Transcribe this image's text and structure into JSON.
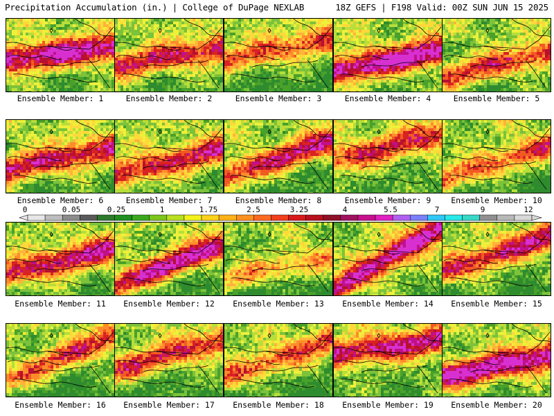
{
  "header": {
    "left_title": "Precipitation Accumulation (in.) | College of DuPage NEXLAB",
    "right_title": "18Z GEFS | F198 Valid: 00Z SUN JUN 15 2025"
  },
  "panels": [
    {
      "label": "Ensemble Member: 1"
    },
    {
      "label": "Ensemble Member: 2"
    },
    {
      "label": "Ensemble Member: 3"
    },
    {
      "label": "Ensemble Member: 4"
    },
    {
      "label": "Ensemble Member: 5"
    },
    {
      "label": "Ensemble Member: 6"
    },
    {
      "label": "Ensemble Member: 7"
    },
    {
      "label": "Ensemble Member: 8"
    },
    {
      "label": "Ensemble Member: 9"
    },
    {
      "label": "Ensemble Member: 10"
    },
    {
      "label": "Ensemble Member: 11"
    },
    {
      "label": "Ensemble Member: 12"
    },
    {
      "label": "Ensemble Member: 13"
    },
    {
      "label": "Ensemble Member: 14"
    },
    {
      "label": "Ensemble Member: 15"
    },
    {
      "label": "Ensemble Member: 16"
    },
    {
      "label": "Ensemble Member: 17"
    },
    {
      "label": "Ensemble Member: 18"
    },
    {
      "label": "Ensemble Member: 19"
    },
    {
      "label": "Ensemble Member: 20"
    }
  ],
  "colorbar": {
    "tick_labels": [
      "0",
      "0.05",
      "0.25",
      "1",
      "1.75",
      "2.5",
      "3.25",
      "4",
      "5.5",
      "7",
      "9",
      "12"
    ],
    "colors": [
      "#e6e6e6",
      "#bdbdbd",
      "#8c8c8c",
      "#5a5a5a",
      "#2d7a2d",
      "#1f8f1f",
      "#3aa81e",
      "#7cc61c",
      "#b9df20",
      "#f2f21a",
      "#ffd21a",
      "#ffb21a",
      "#ff9020",
      "#ff6a1f",
      "#f0401f",
      "#d81a1a",
      "#b8101e",
      "#901028",
      "#a01060",
      "#c8108c",
      "#e020c0",
      "#b060f0",
      "#7a80f8",
      "#30c8f8",
      "#28e8e8",
      "#38d8c8",
      "#909090",
      "#b8b8b8",
      "#d8d8d8"
    ]
  }
}
